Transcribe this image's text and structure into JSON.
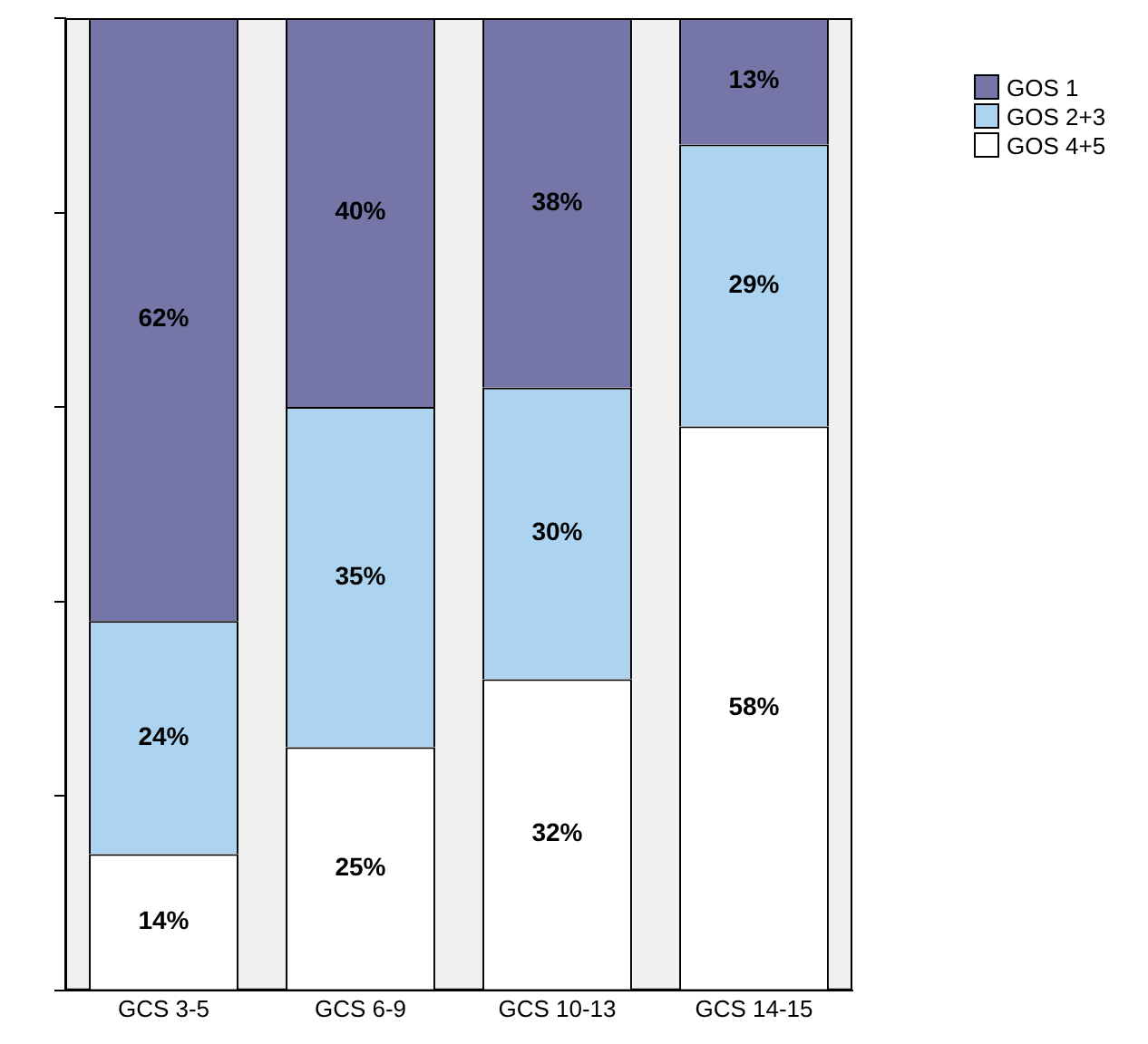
{
  "chart_data": {
    "type": "bar",
    "stacked": true,
    "categories": [
      "GCS 3-5",
      "GCS 6-9",
      "GCS 10-13",
      "GCS 14-15"
    ],
    "series": [
      {
        "name": "GOS 4+5",
        "color": "#ffffff",
        "values": [
          14,
          25,
          32,
          58
        ],
        "value_labels": [
          "14%",
          "25%",
          "32%",
          "58%"
        ]
      },
      {
        "name": "GOS 2+3",
        "color": "#acd4f0",
        "values": [
          24,
          35,
          30,
          29
        ],
        "value_labels": [
          "24%",
          "35%",
          "30%",
          "29%"
        ]
      },
      {
        "name": "GOS 1",
        "color": "#7675a8",
        "values": [
          62,
          40,
          38,
          13
        ],
        "value_labels": [
          "62%",
          "40%",
          "38%",
          "13%"
        ]
      }
    ],
    "ylim": [
      0,
      100
    ],
    "yticks": [
      {
        "value": 0,
        "label": null
      },
      {
        "value": 20,
        "label": null
      },
      {
        "value": 40,
        "label": null
      },
      {
        "value": 60,
        "label": null
      },
      {
        "value": 80,
        "label": null
      },
      {
        "value": 100,
        "label": null
      }
    ],
    "tick_labels": "x",
    "grid": false,
    "legend": "top right"
  }
}
